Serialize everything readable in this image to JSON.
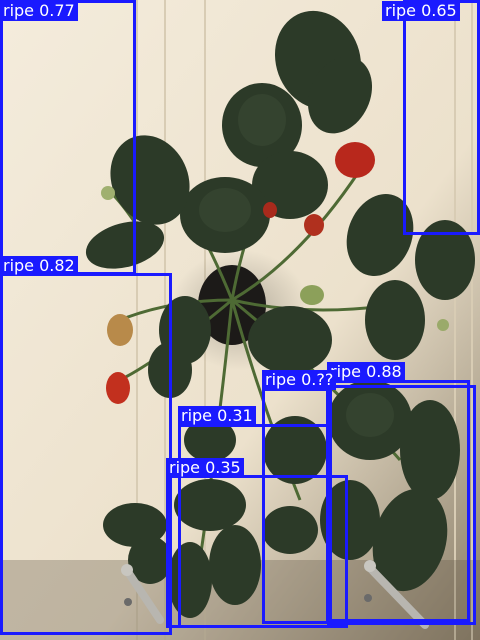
{
  "detections": [
    {
      "label": "ripe 0.77"
    },
    {
      "label": "ripe 0.65"
    },
    {
      "label": "ripe 0.82"
    },
    {
      "label": "ripe 0.88"
    },
    {
      "label": "ripe 0.??"
    },
    {
      "label": "ripe 0.31"
    },
    {
      "label": "ripe 0.35"
    }
  ],
  "colors": {
    "box": "#1a1aff",
    "label_text": "#ffffff",
    "wall": "#f0e6d4",
    "leaf": "#2c3a28",
    "berry": "#c2301e"
  }
}
